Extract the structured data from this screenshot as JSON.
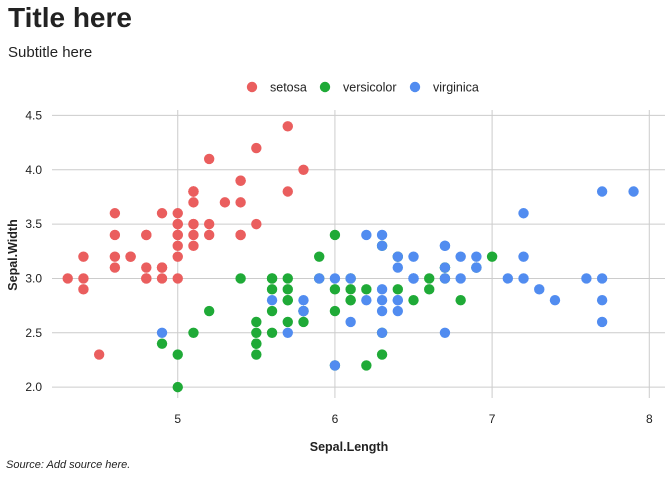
{
  "title": "Title here",
  "subtitle": "Subtitle here",
  "caption": "Source: Add source here.",
  "chart_data": {
    "type": "scatter",
    "title": "Title here",
    "subtitle": "Subtitle here",
    "caption": "Source: Add source here.",
    "xlabel": "Sepal.Length",
    "ylabel": "Sepal.Width",
    "xlim": [
      4.2,
      8.1
    ],
    "ylim": [
      1.9,
      4.55
    ],
    "x_ticks": [
      5,
      6,
      7,
      8
    ],
    "x_tick_labels": [
      "5",
      "6",
      "7",
      "8"
    ],
    "y_ticks": [
      2.0,
      2.5,
      3.0,
      3.5,
      4.0,
      4.5
    ],
    "y_tick_labels": [
      "2.0",
      "2.5",
      "3.0",
      "3.5",
      "4.0",
      "4.5"
    ],
    "grid": true,
    "legend_position": "top",
    "series": [
      {
        "name": "setosa",
        "color": "#EA5E5E",
        "points": [
          [
            5.1,
            3.5
          ],
          [
            4.9,
            3.0
          ],
          [
            4.7,
            3.2
          ],
          [
            4.6,
            3.1
          ],
          [
            5.0,
            3.6
          ],
          [
            5.4,
            3.9
          ],
          [
            4.6,
            3.4
          ],
          [
            5.0,
            3.4
          ],
          [
            4.4,
            2.9
          ],
          [
            4.9,
            3.1
          ],
          [
            5.4,
            3.7
          ],
          [
            4.8,
            3.4
          ],
          [
            4.8,
            3.0
          ],
          [
            4.3,
            3.0
          ],
          [
            5.8,
            4.0
          ],
          [
            5.7,
            4.4
          ],
          [
            5.4,
            3.9
          ],
          [
            5.1,
            3.5
          ],
          [
            5.7,
            3.8
          ],
          [
            5.1,
            3.8
          ],
          [
            5.4,
            3.4
          ],
          [
            5.1,
            3.7
          ],
          [
            4.6,
            3.6
          ],
          [
            5.1,
            3.3
          ],
          [
            4.8,
            3.4
          ],
          [
            5.0,
            3.0
          ],
          [
            5.0,
            3.4
          ],
          [
            5.2,
            3.5
          ],
          [
            5.2,
            3.4
          ],
          [
            4.7,
            3.2
          ],
          [
            4.8,
            3.1
          ],
          [
            5.4,
            3.4
          ],
          [
            5.2,
            4.1
          ],
          [
            5.5,
            4.2
          ],
          [
            4.9,
            3.1
          ],
          [
            5.0,
            3.2
          ],
          [
            5.5,
            3.5
          ],
          [
            4.9,
            3.6
          ],
          [
            4.4,
            3.0
          ],
          [
            5.1,
            3.4
          ],
          [
            5.0,
            3.5
          ],
          [
            4.5,
            2.3
          ],
          [
            4.4,
            3.2
          ],
          [
            5.0,
            3.5
          ],
          [
            5.1,
            3.8
          ],
          [
            4.8,
            3.0
          ],
          [
            5.1,
            3.8
          ],
          [
            4.6,
            3.2
          ],
          [
            5.3,
            3.7
          ],
          [
            5.0,
            3.3
          ]
        ]
      },
      {
        "name": "versicolor",
        "color": "#1FAA37",
        "points": [
          [
            7.0,
            3.2
          ],
          [
            6.4,
            3.2
          ],
          [
            6.9,
            3.1
          ],
          [
            5.5,
            2.3
          ],
          [
            6.5,
            2.8
          ],
          [
            5.7,
            2.8
          ],
          [
            6.3,
            3.3
          ],
          [
            4.9,
            2.4
          ],
          [
            6.6,
            2.9
          ],
          [
            5.2,
            2.7
          ],
          [
            5.0,
            2.0
          ],
          [
            5.9,
            3.0
          ],
          [
            6.0,
            2.2
          ],
          [
            6.1,
            2.9
          ],
          [
            5.6,
            2.9
          ],
          [
            6.7,
            3.1
          ],
          [
            5.6,
            3.0
          ],
          [
            5.8,
            2.7
          ],
          [
            6.2,
            2.2
          ],
          [
            5.6,
            2.5
          ],
          [
            5.9,
            3.2
          ],
          [
            6.1,
            2.8
          ],
          [
            6.3,
            2.5
          ],
          [
            6.1,
            2.8
          ],
          [
            6.4,
            2.9
          ],
          [
            6.6,
            3.0
          ],
          [
            6.8,
            2.8
          ],
          [
            6.7,
            3.0
          ],
          [
            6.0,
            2.9
          ],
          [
            5.7,
            2.6
          ],
          [
            5.5,
            2.4
          ],
          [
            5.5,
            2.4
          ],
          [
            5.8,
            2.7
          ],
          [
            6.0,
            2.7
          ],
          [
            5.4,
            3.0
          ],
          [
            6.0,
            3.4
          ],
          [
            6.7,
            3.1
          ],
          [
            6.3,
            2.3
          ],
          [
            5.6,
            3.0
          ],
          [
            5.5,
            2.5
          ],
          [
            5.5,
            2.6
          ],
          [
            6.1,
            3.0
          ],
          [
            5.8,
            2.6
          ],
          [
            5.0,
            2.3
          ],
          [
            5.6,
            2.7
          ],
          [
            5.7,
            3.0
          ],
          [
            5.7,
            2.9
          ],
          [
            6.2,
            2.9
          ],
          [
            5.1,
            2.5
          ],
          [
            5.7,
            2.8
          ]
        ]
      },
      {
        "name": "virginica",
        "color": "#518CF0",
        "points": [
          [
            6.3,
            3.3
          ],
          [
            5.8,
            2.7
          ],
          [
            7.1,
            3.0
          ],
          [
            6.3,
            2.9
          ],
          [
            6.5,
            3.0
          ],
          [
            7.6,
            3.0
          ],
          [
            4.9,
            2.5
          ],
          [
            7.3,
            2.9
          ],
          [
            6.7,
            2.5
          ],
          [
            7.2,
            3.6
          ],
          [
            6.5,
            3.2
          ],
          [
            6.4,
            2.7
          ],
          [
            6.8,
            3.0
          ],
          [
            5.7,
            2.5
          ],
          [
            5.8,
            2.8
          ],
          [
            6.4,
            3.2
          ],
          [
            6.5,
            3.0
          ],
          [
            7.7,
            3.8
          ],
          [
            7.7,
            2.6
          ],
          [
            6.0,
            2.2
          ],
          [
            6.9,
            3.2
          ],
          [
            5.6,
            2.8
          ],
          [
            7.7,
            2.8
          ],
          [
            6.3,
            2.7
          ],
          [
            6.7,
            3.3
          ],
          [
            7.2,
            3.2
          ],
          [
            6.2,
            2.8
          ],
          [
            6.1,
            3.0
          ],
          [
            6.4,
            2.8
          ],
          [
            7.2,
            3.0
          ],
          [
            7.4,
            2.8
          ],
          [
            7.9,
            3.8
          ],
          [
            6.4,
            2.8
          ],
          [
            6.3,
            2.8
          ],
          [
            6.1,
            2.6
          ],
          [
            7.7,
            3.0
          ],
          [
            6.3,
            3.4
          ],
          [
            6.4,
            3.1
          ],
          [
            6.0,
            3.0
          ],
          [
            6.9,
            3.1
          ],
          [
            6.7,
            3.1
          ],
          [
            6.9,
            3.1
          ],
          [
            5.8,
            2.7
          ],
          [
            6.8,
            3.2
          ],
          [
            6.7,
            3.3
          ],
          [
            6.7,
            3.0
          ],
          [
            6.3,
            2.5
          ],
          [
            6.5,
            3.0
          ],
          [
            6.2,
            3.4
          ],
          [
            5.9,
            3.0
          ]
        ]
      }
    ]
  }
}
